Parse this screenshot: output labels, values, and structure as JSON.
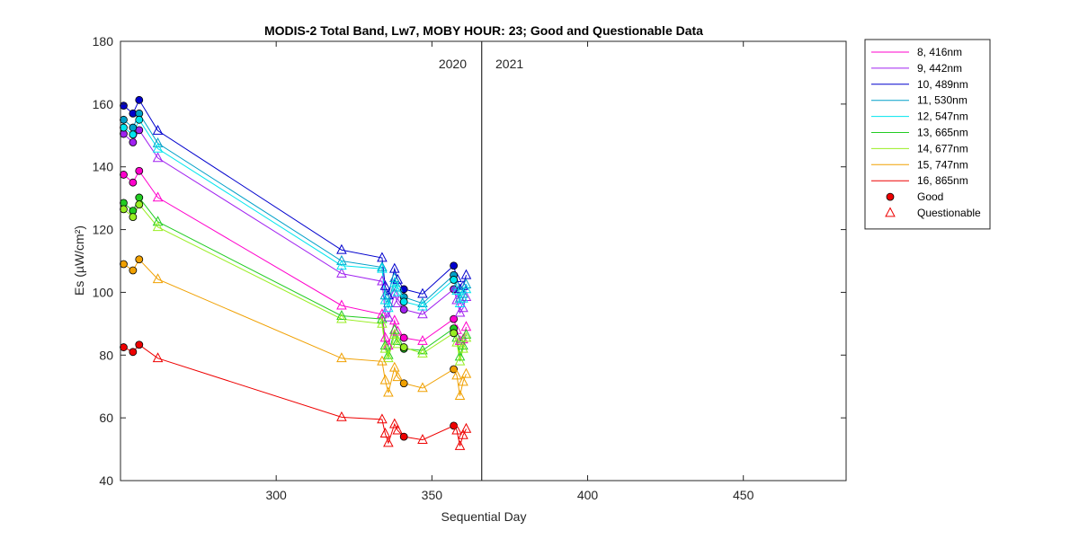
{
  "chart_data": {
    "type": "line",
    "title": "MODIS-2 Total Band,  Lw7, MOBY HOUR: 23;  Good and Questionable Data",
    "xlabel": "Sequential Day",
    "ylabel": "Es (µW/cm²)",
    "xlim": [
      250,
      483
    ],
    "ylim": [
      40,
      180
    ],
    "xticks": [
      300,
      350,
      400,
      450
    ],
    "yticks": [
      40,
      60,
      80,
      100,
      120,
      140,
      160,
      180
    ],
    "grid": false,
    "legend_position": "outside-right",
    "year_divider_x": 366,
    "year_labels": [
      "2020",
      "2021"
    ],
    "legend_markers": [
      {
        "label": "Good",
        "symbol": "circle"
      },
      {
        "label": "Questionable",
        "symbol": "triangle"
      }
    ],
    "x": [
      251,
      254,
      256,
      262,
      321,
      334,
      335,
      336,
      338,
      339,
      341,
      347,
      357,
      358,
      359,
      360,
      361
    ],
    "quality": [
      "Good",
      "Good",
      "Good",
      "Questionable",
      "Questionable",
      "Questionable",
      "Questionable",
      "Questionable",
      "Questionable",
      "Questionable",
      "Good",
      "Questionable",
      "Good",
      "Questionable",
      "Questionable",
      "Questionable",
      "Questionable"
    ],
    "series": [
      {
        "name": "8, 416nm",
        "color": "#ff00cc",
        "values": [
          137.5,
          135.0,
          138.7,
          130.2,
          95.8,
          93.0,
          85.5,
          83.0,
          91.0,
          87.5,
          85.5,
          84.5,
          91.5,
          88.0,
          84.5,
          85.0,
          89.0
        ]
      },
      {
        "name": "9, 442nm",
        "color": "#a020f0",
        "values": [
          150.5,
          147.8,
          151.7,
          142.8,
          106.0,
          103.5,
          93.5,
          92.0,
          99.5,
          96.5,
          94.5,
          93.0,
          101.0,
          97.5,
          93.5,
          95.0,
          98.5
        ]
      },
      {
        "name": "10, 489nm",
        "color": "#0000cd",
        "values": [
          159.5,
          157.0,
          161.3,
          151.5,
          113.5,
          111.0,
          102.0,
          99.0,
          107.5,
          104.0,
          101.0,
          99.5,
          108.5,
          104.5,
          101.0,
          102.0,
          105.5
        ]
      },
      {
        "name": "11, 530nm",
        "color": "#00a0c8",
        "values": [
          155.0,
          152.5,
          157.0,
          147.5,
          110.0,
          108.0,
          99.0,
          96.5,
          104.5,
          101.5,
          98.5,
          96.5,
          105.5,
          102.0,
          98.0,
          99.5,
          102.5
        ]
      },
      {
        "name": "12, 547nm",
        "color": "#00e5ee",
        "values": [
          152.5,
          150.3,
          155.0,
          145.8,
          108.5,
          107.5,
          97.5,
          95.0,
          103.0,
          100.0,
          97.0,
          95.5,
          104.0,
          100.5,
          96.5,
          98.0,
          101.0
        ]
      },
      {
        "name": "13, 665nm",
        "color": "#22cc22",
        "values": [
          128.5,
          126.0,
          130.2,
          122.5,
          92.5,
          91.5,
          83.0,
          80.0,
          88.0,
          84.5,
          82.0,
          81.5,
          88.5,
          85.5,
          79.5,
          83.0,
          86.5
        ]
      },
      {
        "name": "14, 677nm",
        "color": "#99ee22",
        "values": [
          126.5,
          124.0,
          128.0,
          120.8,
          91.5,
          90.0,
          82.0,
          79.0,
          86.5,
          83.5,
          82.5,
          80.5,
          87.0,
          84.0,
          78.0,
          82.0,
          85.5
        ]
      },
      {
        "name": "15, 747nm",
        "color": "#f0a000",
        "values": [
          109.0,
          107.0,
          110.5,
          104.2,
          79.0,
          78.0,
          72.0,
          68.0,
          76.0,
          73.0,
          71.0,
          69.5,
          75.5,
          73.5,
          67.0,
          71.5,
          74.0
        ]
      },
      {
        "name": "16, 865nm",
        "color": "#ee0000",
        "values": [
          82.5,
          81.0,
          83.3,
          79.0,
          60.2,
          59.5,
          55.0,
          52.0,
          58.0,
          56.0,
          54.0,
          53.0,
          57.5,
          56.0,
          51.0,
          54.5,
          56.5
        ]
      }
    ]
  }
}
